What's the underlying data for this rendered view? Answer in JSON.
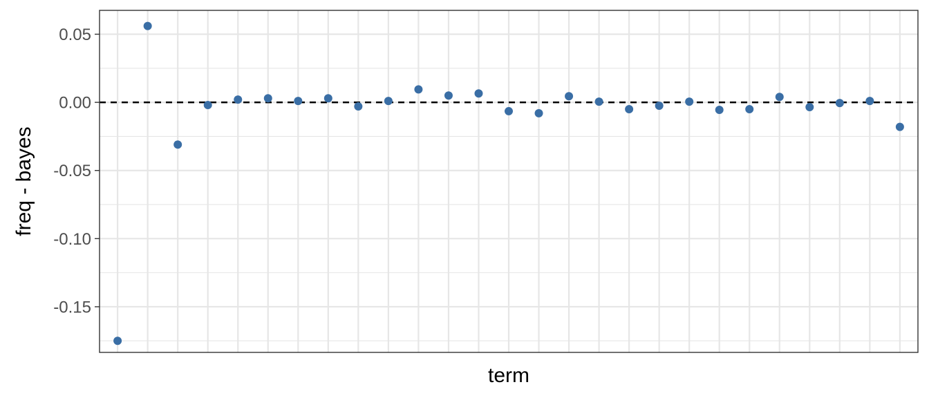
{
  "chart_data": {
    "type": "scatter",
    "xlabel": "term",
    "ylabel": "freq - bayes",
    "ylim": [
      -0.1835,
      0.0675
    ],
    "yticks": [
      0.05,
      0.0,
      -0.05,
      -0.1,
      -0.15
    ],
    "ytick_labels": [
      "0.05",
      "0.00",
      "-0.05",
      "-0.10",
      "-0.15"
    ],
    "reference_line": {
      "y": 0,
      "style": "dashed"
    },
    "grid": true,
    "x_tick_labels_shown": false,
    "series": [
      {
        "values": [
          -0.175,
          0.056,
          -0.031,
          -0.002,
          0.002,
          0.003,
          0.001,
          0.003,
          -0.003,
          0.001,
          0.0095,
          0.005,
          0.0065,
          -0.0065,
          -0.008,
          0.0045,
          0.0005,
          -0.005,
          -0.0025,
          0.0005,
          -0.0055,
          -0.005,
          0.004,
          -0.0035,
          -0.0005,
          0.001,
          -0.018
        ]
      }
    ],
    "colors": {
      "point": "#3a6ea5",
      "grid": "#e6e6e6",
      "panel_border": "#333333",
      "reference_line": "#000000"
    }
  }
}
